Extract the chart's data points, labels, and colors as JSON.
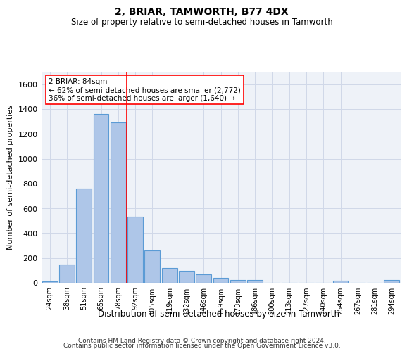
{
  "title": "2, BRIAR, TAMWORTH, B77 4DX",
  "subtitle": "Size of property relative to semi-detached houses in Tamworth",
  "xlabel": "Distribution of semi-detached houses by size in Tamworth",
  "ylabel": "Number of semi-detached properties",
  "categories": [
    "24sqm",
    "38sqm",
    "51sqm",
    "65sqm",
    "78sqm",
    "92sqm",
    "105sqm",
    "119sqm",
    "132sqm",
    "146sqm",
    "159sqm",
    "173sqm",
    "186sqm",
    "200sqm",
    "213sqm",
    "227sqm",
    "240sqm",
    "254sqm",
    "267sqm",
    "281sqm",
    "294sqm"
  ],
  "values": [
    10,
    150,
    760,
    1360,
    1290,
    530,
    260,
    120,
    95,
    70,
    40,
    20,
    20,
    0,
    0,
    0,
    0,
    15,
    0,
    0,
    20
  ],
  "bar_color": "#aec6e8",
  "bar_edge_color": "#5b9bd5",
  "grid_color": "#d0d8e8",
  "background_color": "#eef2f8",
  "annotation_text": "2 BRIAR: 84sqm\n← 62% of semi-detached houses are smaller (2,772)\n36% of semi-detached houses are larger (1,640) →",
  "vline_x": 4.5,
  "footer_line1": "Contains HM Land Registry data © Crown copyright and database right 2024.",
  "footer_line2": "Contains public sector information licensed under the Open Government Licence v3.0.",
  "ylim": [
    0,
    1700
  ],
  "yticks": [
    0,
    200,
    400,
    600,
    800,
    1000,
    1200,
    1400,
    1600
  ]
}
